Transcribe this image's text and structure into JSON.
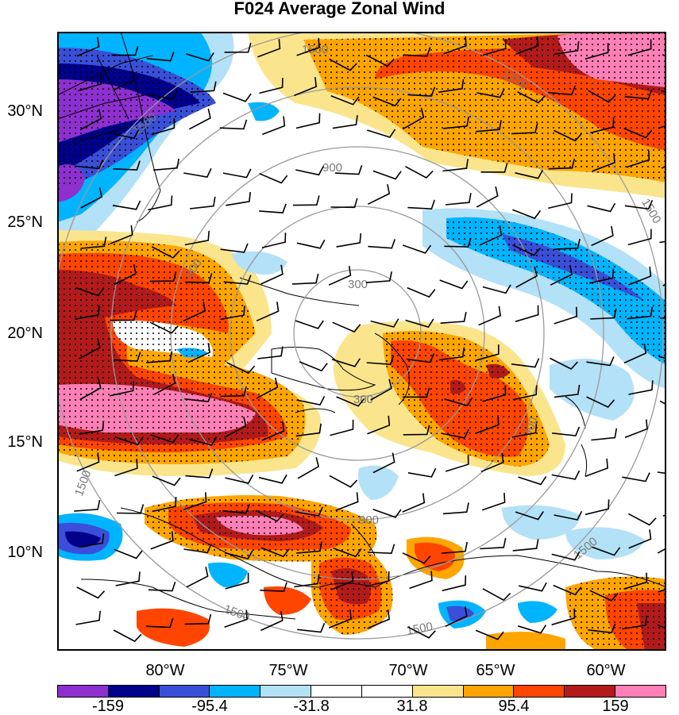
{
  "title": "F024 Average Zonal Wind",
  "lat_labels": [
    "30°N",
    "25°N",
    "20°N",
    "15°N",
    "10°N"
  ],
  "lon_labels": [
    "80°W",
    "75°W",
    "70°W",
    "65°W",
    "60°W"
  ],
  "ring_labels": [
    "300",
    "900",
    "1500"
  ],
  "ring_text": {
    "r300a": "300",
    "r300b": "300",
    "r900a": "900",
    "r900b": "900",
    "r900c": "900",
    "r900d": "900",
    "r1500a": "1500",
    "r1500b": "1500",
    "r1500c": "1500",
    "r1500d": "1500",
    "r1500e": "1500",
    "r1500f": "1500",
    "r1500g": "1500",
    "r1200": "1200"
  },
  "colorbar": {
    "labels": [
      "-159",
      "-95.4",
      "-31.8",
      "31.8",
      "95.4",
      "159"
    ],
    "colors": [
      "#8e2fd0",
      "#00008b",
      "#3a4fd8",
      "#00b4ff",
      "#b3e1f7",
      "#ffffff",
      "#ffffff",
      "#fbe58c",
      "#ffa500",
      "#ff4500",
      "#b31a1a",
      "#ff7fb6"
    ]
  },
  "chart_data": {
    "type": "heatmap",
    "title": "F024 Average Zonal Wind",
    "variable": "zonal wind",
    "lat_ticks": [
      "30°N",
      "25°N",
      "20°N",
      "15°N",
      "10°N"
    ],
    "lon_ticks": [
      "80°W",
      "75°W",
      "70°W",
      "65°W",
      "60°W"
    ],
    "contour_levels": [
      -159,
      -95.4,
      -31.8,
      31.8,
      95.4,
      159
    ],
    "range_rings": [
      300,
      900,
      1500
    ],
    "overlays": [
      "wind barbs",
      "stippling",
      "coastlines",
      "range rings"
    ]
  }
}
